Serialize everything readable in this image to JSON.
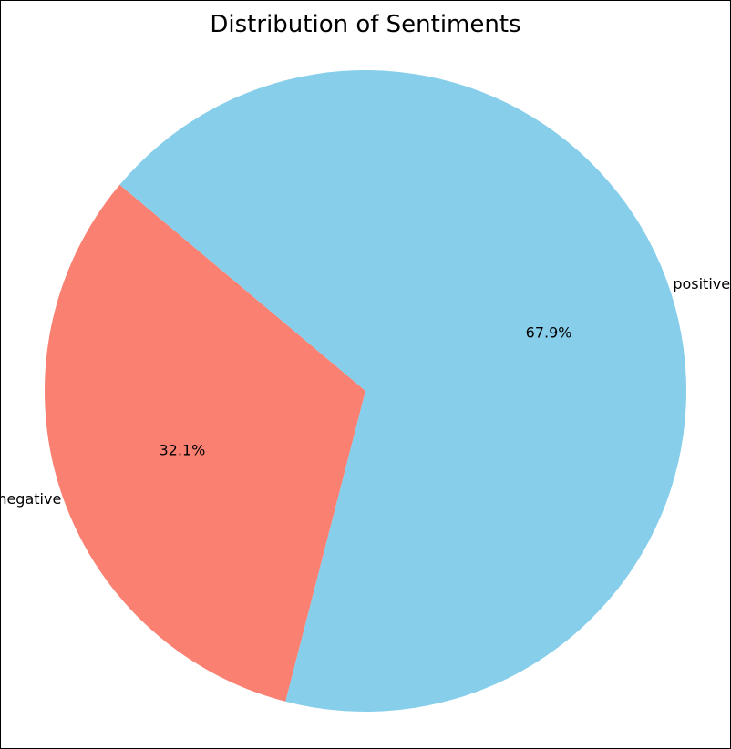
{
  "chart_data": {
    "type": "pie",
    "title": "Distribution of Sentiments",
    "slices": [
      {
        "label": "negative",
        "value": 32.1,
        "pct_label": "32.1%",
        "color": "#FA8072"
      },
      {
        "label": "positive",
        "value": 67.9,
        "pct_label": "67.9%",
        "color": "#87CEEB"
      }
    ],
    "start_angle_deg": 140,
    "direction": "counterclockwise"
  }
}
